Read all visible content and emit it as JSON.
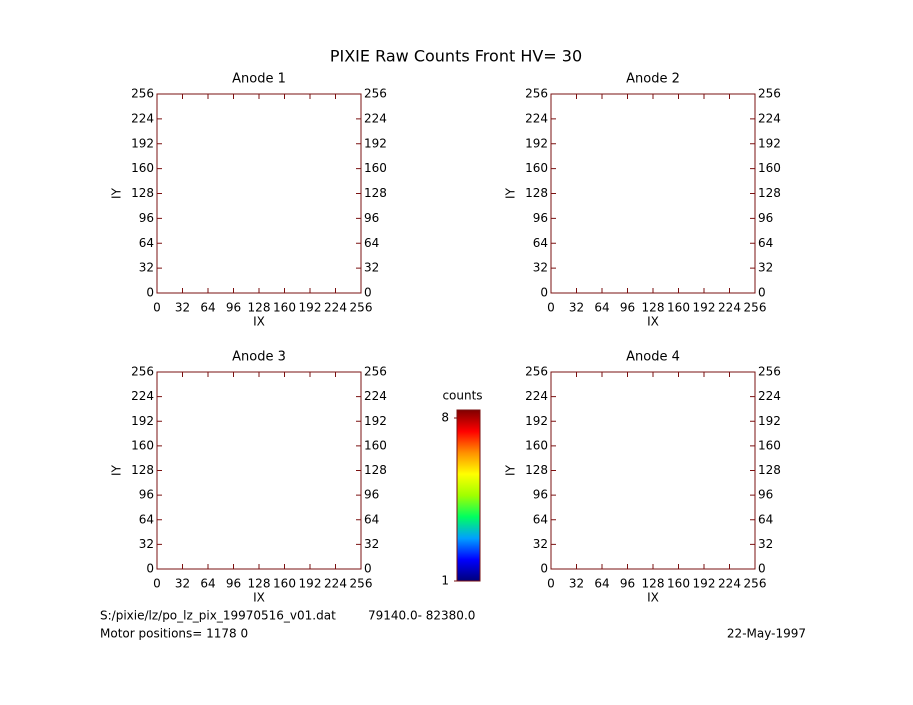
{
  "title": "PIXIE Raw Counts Front HV= 30",
  "chart_data": [
    {
      "type": "heatmap",
      "title": "Anode 1",
      "xlabel": "IX",
      "ylabel": "IY",
      "xlim": [
        0,
        256
      ],
      "ylim": [
        0,
        256
      ],
      "xticks": [
        0,
        32,
        64,
        96,
        128,
        160,
        192,
        224,
        256
      ],
      "yticks": [
        0,
        32,
        64,
        96,
        128,
        160,
        192,
        224,
        256
      ]
    },
    {
      "type": "heatmap",
      "title": "Anode 2",
      "xlabel": "IX",
      "ylabel": "IY",
      "xlim": [
        0,
        256
      ],
      "ylim": [
        0,
        256
      ],
      "xticks": [
        0,
        32,
        64,
        96,
        128,
        160,
        192,
        224,
        256
      ],
      "yticks": [
        0,
        32,
        64,
        96,
        128,
        160,
        192,
        224,
        256
      ]
    },
    {
      "type": "heatmap",
      "title": "Anode 3",
      "xlabel": "IX",
      "ylabel": "IY",
      "xlim": [
        0,
        256
      ],
      "ylim": [
        0,
        256
      ],
      "xticks": [
        0,
        32,
        64,
        96,
        128,
        160,
        192,
        224,
        256
      ],
      "yticks": [
        0,
        32,
        64,
        96,
        128,
        160,
        192,
        224,
        256
      ]
    },
    {
      "type": "heatmap",
      "title": "Anode 4",
      "xlabel": "IX",
      "ylabel": "IY",
      "xlim": [
        0,
        256
      ],
      "ylim": [
        0,
        256
      ],
      "xticks": [
        0,
        32,
        64,
        96,
        128,
        160,
        192,
        224,
        256
      ],
      "yticks": [
        0,
        32,
        64,
        96,
        128,
        160,
        192,
        224,
        256
      ]
    }
  ],
  "colorbar": {
    "label": "counts",
    "lim": [
      1,
      8
    ],
    "ticks": [
      1,
      8
    ],
    "colors": [
      "#00007a",
      "#0000ff",
      "#00a0ff",
      "#00ff60",
      "#a0ff00",
      "#ffff00",
      "#ff9000",
      "#ff0000",
      "#800000"
    ]
  },
  "footer": {
    "file": "S:/pixie/lz/po_lz_pix_19970516_v01.dat",
    "range": "79140.0- 82380.0",
    "motor": "Motor positions= 1178 0",
    "date": "22-May-1997"
  }
}
